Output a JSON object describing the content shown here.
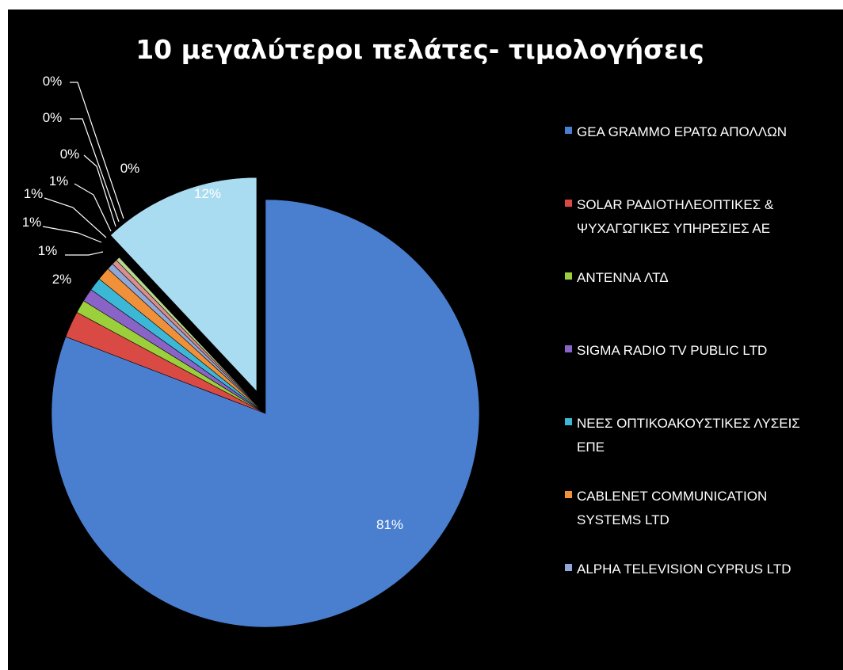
{
  "chart_data": {
    "type": "pie",
    "title": "10 μεγαλύτεροι πελάτες- τιμολογήσεις",
    "slices": [
      {
        "name": "GEA GRAMMO ΕΡΑΤΩ ΑΠΟΛΛΩΝ",
        "value": 81,
        "label": "81%",
        "color": "#4a7fd0",
        "legend_lines": [
          "GEA GRAMMO ΕΡΑΤΩ ΑΠΟΛΛΩΝ"
        ]
      },
      {
        "name": "SOLAR ΡΑΔΙΟΤΗΛΕΟΠΤΙΚΕΣ & ΨΥΧΑΓΩΓΙΚΕΣ ΥΠΗΡΕΣΙΕΣ ΑΕ",
        "value": 2,
        "label": "2%",
        "color": "#d94a45",
        "legend_lines": [
          "SOLAR ΡΑΔΙΟΤΗΛΕΟΠΤΙΚΕΣ &",
          "ΨΥΧΑΓΩΓΙΚΕΣ ΥΠΗΡΕΣΙΕΣ ΑΕ"
        ]
      },
      {
        "name": "ANTENNA ΛΤΔ",
        "value": 1,
        "label": "1%",
        "color": "#9bd03c",
        "legend_lines": [
          "ANTENNA ΛΤΔ"
        ]
      },
      {
        "name": "SIGMA RADIO TV PUBLIC LTD",
        "value": 1,
        "label": "1%",
        "color": "#8a63c6",
        "legend_lines": [
          "SIGMA RADIO TV PUBLIC LTD"
        ]
      },
      {
        "name": "ΝΕΕΣ ΟΠΤΙΚΟΑΚΟΥΣΤΙΚΕΣ ΛΥΣΕΙΣ ΕΠΕ",
        "value": 1,
        "label": "1%",
        "color": "#3cb8d6",
        "legend_lines": [
          "ΝΕΕΣ ΟΠΤΙΚΟΑΚΟΥΣΤΙΚΕΣ ΛΥΣΕΙΣ",
          "ΕΠΕ"
        ]
      },
      {
        "name": "CABLENET COMMUNICATION SYSTEMS LTD",
        "value": 1,
        "label": "1%",
        "color": "#f0913a",
        "legend_lines": [
          "CABLENET COMMUNICATION",
          "SYSTEMS LTD"
        ]
      },
      {
        "name": "ALPHA TELEVISION CYPRUS LTD",
        "value": 0.5,
        "label": "0%",
        "color": "#8fa8d8",
        "legend_lines": [
          "ALPHA TELEVISION CYPRUS LTD"
        ]
      },
      {
        "name": "",
        "value": 0.4,
        "label": "0%",
        "color": "#d98f8c",
        "legend_lines": []
      },
      {
        "name": "",
        "value": 0.3,
        "label": "0%",
        "color": "#b7d88e",
        "legend_lines": []
      },
      {
        "name": "",
        "value": 12,
        "label": "12%",
        "color": "#a9dcf0",
        "legend_lines": []
      }
    ]
  }
}
